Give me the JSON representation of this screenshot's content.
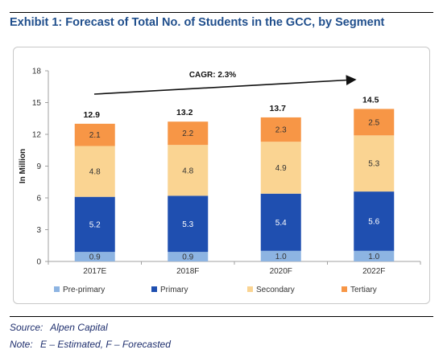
{
  "title": "Exhibit 1: Forecast of Total No. of Students in the GCC, by Segment",
  "source_label": "Source:",
  "source_text": "Alpen Capital",
  "note_label": "Note:",
  "note_text": "E – Estimated, F – Forecasted",
  "chart_data": {
    "type": "bar",
    "stacked": true,
    "categories": [
      "2017E",
      "2018F",
      "2020F",
      "2022F"
    ],
    "series": [
      {
        "name": "Pre-primary",
        "values": [
          0.9,
          0.9,
          1.0,
          1.0
        ],
        "color": "#8db4e2"
      },
      {
        "name": "Primary",
        "values": [
          5.2,
          5.3,
          5.4,
          5.6
        ],
        "color": "#1f4fb0"
      },
      {
        "name": "Secondary",
        "values": [
          4.8,
          4.8,
          4.9,
          5.3
        ],
        "color": "#fad492"
      },
      {
        "name": "Tertiary",
        "values": [
          2.1,
          2.2,
          2.3,
          2.5
        ],
        "color": "#f79646"
      }
    ],
    "totals": [
      12.9,
      13.2,
      13.7,
      14.5
    ],
    "ylabel": "In Million",
    "ylim": [
      0,
      18
    ],
    "yticks": [
      0,
      3,
      6,
      9,
      12,
      15,
      18
    ],
    "grid": false,
    "legend": "bottom",
    "annotation": "CAGR: 2.3%"
  }
}
